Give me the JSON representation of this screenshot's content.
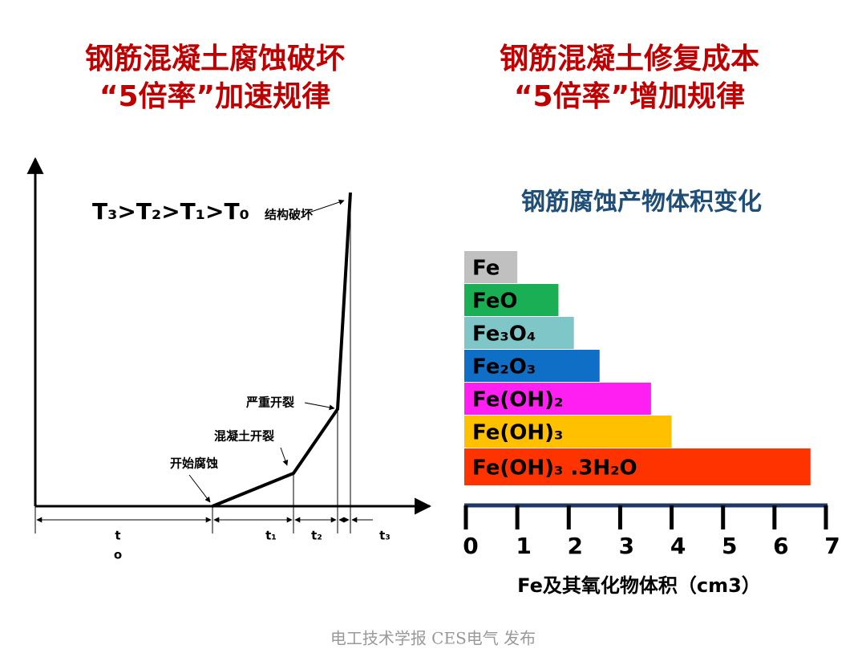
{
  "left": {
    "title_lines": [
      "钢筋混凝土腐蚀破坏",
      "“5倍率”加速规律"
    ],
    "diagram": {
      "condition": "T₃>T₂>T₁>T₀",
      "annotations": [
        "结构破坏",
        "严重开裂",
        "混凝土开裂",
        "开始腐蚀"
      ],
      "t0_label": [
        "t",
        "o"
      ],
      "intervals": [
        "t₁",
        "t₂",
        "t₃"
      ]
    }
  },
  "right": {
    "title_lines": [
      "钢筋混凝土修复成本",
      "“5倍率”增加规律"
    ]
  },
  "chart_data": {
    "type": "hbar",
    "title": "钢筋腐蚀产物体积变化",
    "categories": [
      "Fe",
      "FeO",
      "Fe₃O₄",
      "Fe₂O₃",
      "Fe(OH)₂",
      "Fe(OH)₃",
      "Fe(OH)₃ .3H₂O"
    ],
    "values": [
      1.0,
      1.8,
      2.1,
      2.6,
      3.6,
      4.0,
      6.7
    ],
    "colors": [
      "#c0c0c0",
      "#1aaf54",
      "#7fc6c8",
      "#0f6fc6",
      "#ff1ff2",
      "#ffc000",
      "#ff3300"
    ],
    "xlabel": "Fe及其氧化物体积（cm3）",
    "xlim": [
      0,
      7
    ],
    "xticks": [
      0,
      1,
      2,
      3,
      4,
      5,
      6,
      7
    ]
  },
  "footer": "电工技术学报 CES电气 发布"
}
